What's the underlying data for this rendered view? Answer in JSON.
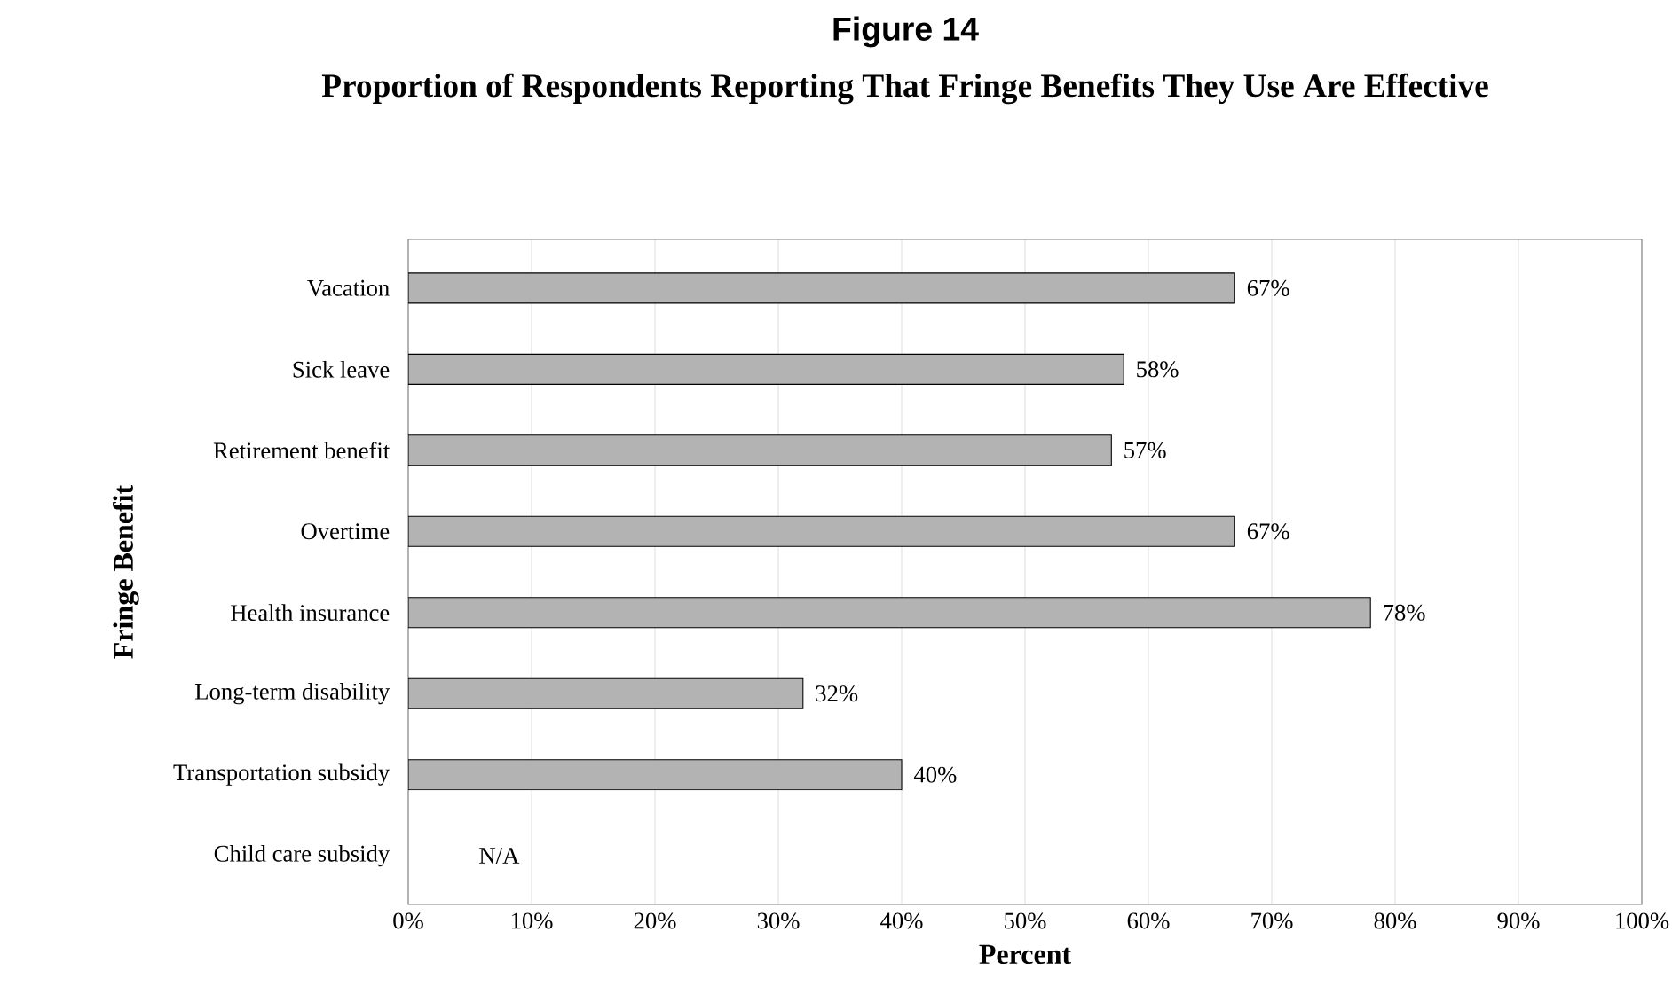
{
  "chart_data": {
    "type": "bar",
    "orientation": "horizontal",
    "title": "Figure 14",
    "subtitle": "Proportion of Respondents Reporting That Fringe Benefits They Use Are Effective",
    "xlabel": "Percent",
    "ylabel": "Fringe Benefit",
    "categories": [
      "Vacation",
      "Sick leave",
      "Retirement benefit",
      "Overtime",
      "Health insurance",
      "Long-term disability",
      "Transportation subsidy",
      "Child care subsidy"
    ],
    "values": [
      67,
      58,
      57,
      67,
      78,
      32,
      40,
      null
    ],
    "value_labels": [
      "67%",
      "58%",
      "57%",
      "67%",
      "78%",
      "32%",
      "40%",
      "N/A"
    ],
    "color": "#b3b3b3",
    "xlim": [
      0,
      100
    ],
    "xticks": [
      {
        "value": 0,
        "label": "0%"
      },
      {
        "value": 10,
        "label": "10%"
      },
      {
        "value": 20,
        "label": "20%"
      },
      {
        "value": 30,
        "label": "30%"
      },
      {
        "value": 40,
        "label": "40%"
      },
      {
        "value": 50,
        "label": "50%"
      },
      {
        "value": 60,
        "label": "60%"
      },
      {
        "value": 70,
        "label": "70%"
      },
      {
        "value": 80,
        "label": "80%"
      },
      {
        "value": 90,
        "label": "90%"
      },
      {
        "value": 100,
        "label": "100%"
      }
    ],
    "grid": "x"
  }
}
